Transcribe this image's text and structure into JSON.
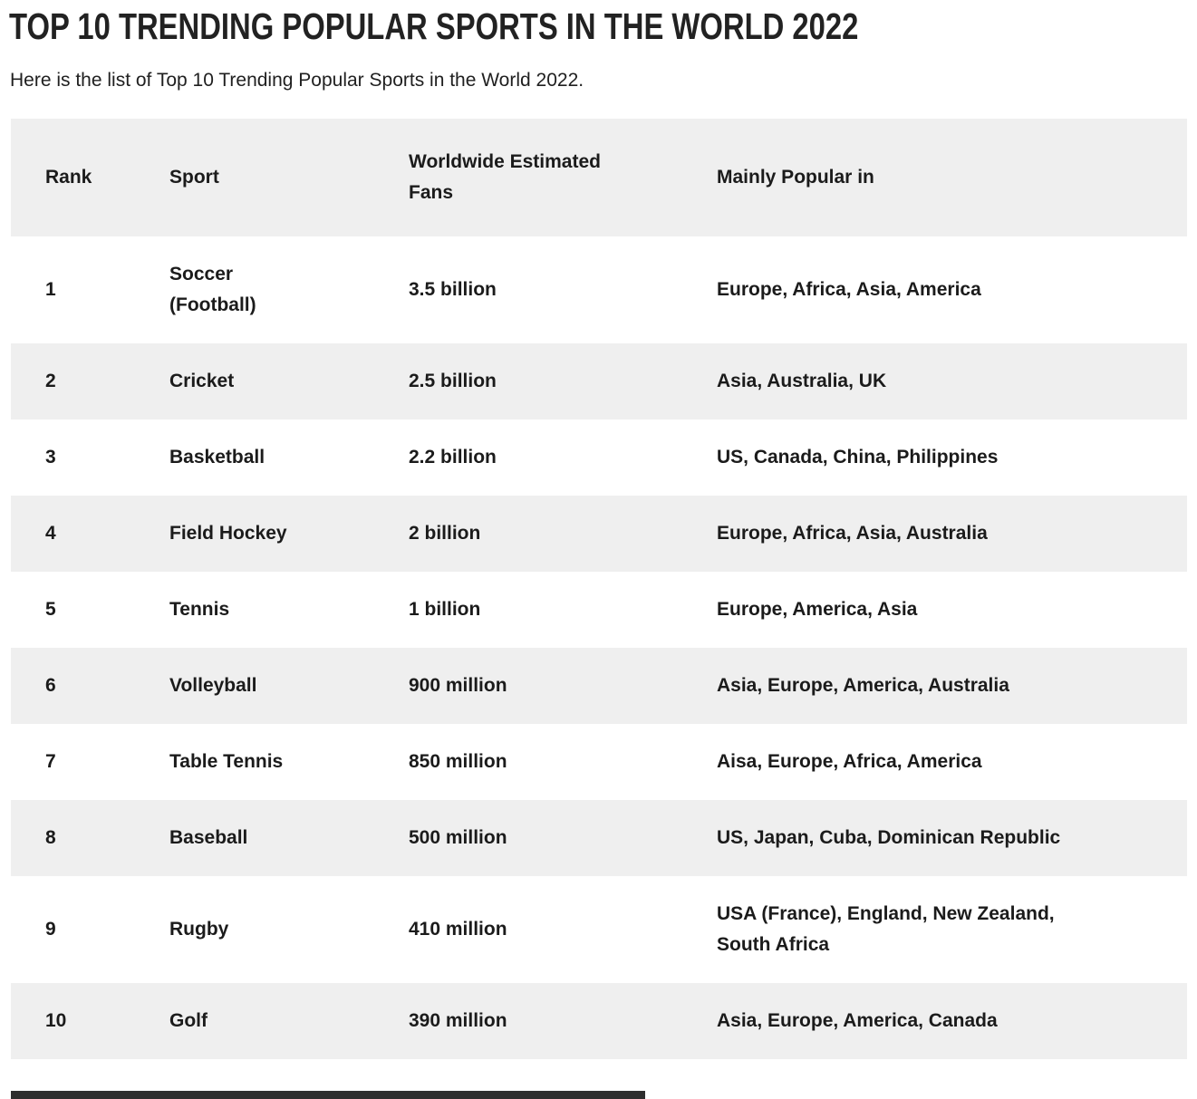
{
  "page": {
    "title": "TOP 10 TRENDING POPULAR SPORTS IN THE WORLD 2022",
    "subtitle": "Here is the list of Top 10 Trending Popular Sports in the World 2022."
  },
  "table": {
    "headers": [
      "Rank",
      "Sport",
      "Worldwide Estimated\nFans",
      "Mainly Popular in"
    ],
    "rows": [
      {
        "rank": "1",
        "sport": "Soccer\n(Football)",
        "fans": "3.5 billion",
        "popular_in": "Europe, Africa, Asia, America"
      },
      {
        "rank": "2",
        "sport": "Cricket",
        "fans": "2.5 billion",
        "popular_in": "Asia, Australia, UK"
      },
      {
        "rank": "3",
        "sport": "Basketball",
        "fans": "2.2 billion",
        "popular_in": "US, Canada, China, Philippines"
      },
      {
        "rank": "4",
        "sport": "Field Hockey",
        "fans": "2 billion",
        "popular_in": "Europe, Africa, Asia, Australia"
      },
      {
        "rank": "5",
        "sport": "Tennis",
        "fans": "1 billion",
        "popular_in": "Europe, America, Asia"
      },
      {
        "rank": "6",
        "sport": "Volleyball",
        "fans": "900 million",
        "popular_in": "Asia, Europe, America, Australia"
      },
      {
        "rank": "7",
        "sport": "Table Tennis",
        "fans": "850 million",
        "popular_in": "Aisa, Europe, Africa, America"
      },
      {
        "rank": "8",
        "sport": "Baseball",
        "fans": "500 million",
        "popular_in": "US, Japan, Cuba, Dominican Republic"
      },
      {
        "rank": "9",
        "sport": "Rugby",
        "fans": "410 million",
        "popular_in": "USA (France), England, New Zealand,\nSouth Africa"
      },
      {
        "rank": "10",
        "sport": "Golf",
        "fans": "390 million",
        "popular_in": "Asia, Europe, America, Canada"
      }
    ]
  },
  "colors": {
    "row_alternate": "#efefef",
    "row_default": "#ffffff",
    "text": "#1b1b1b",
    "bottom_strip": "#2e2e2e"
  }
}
